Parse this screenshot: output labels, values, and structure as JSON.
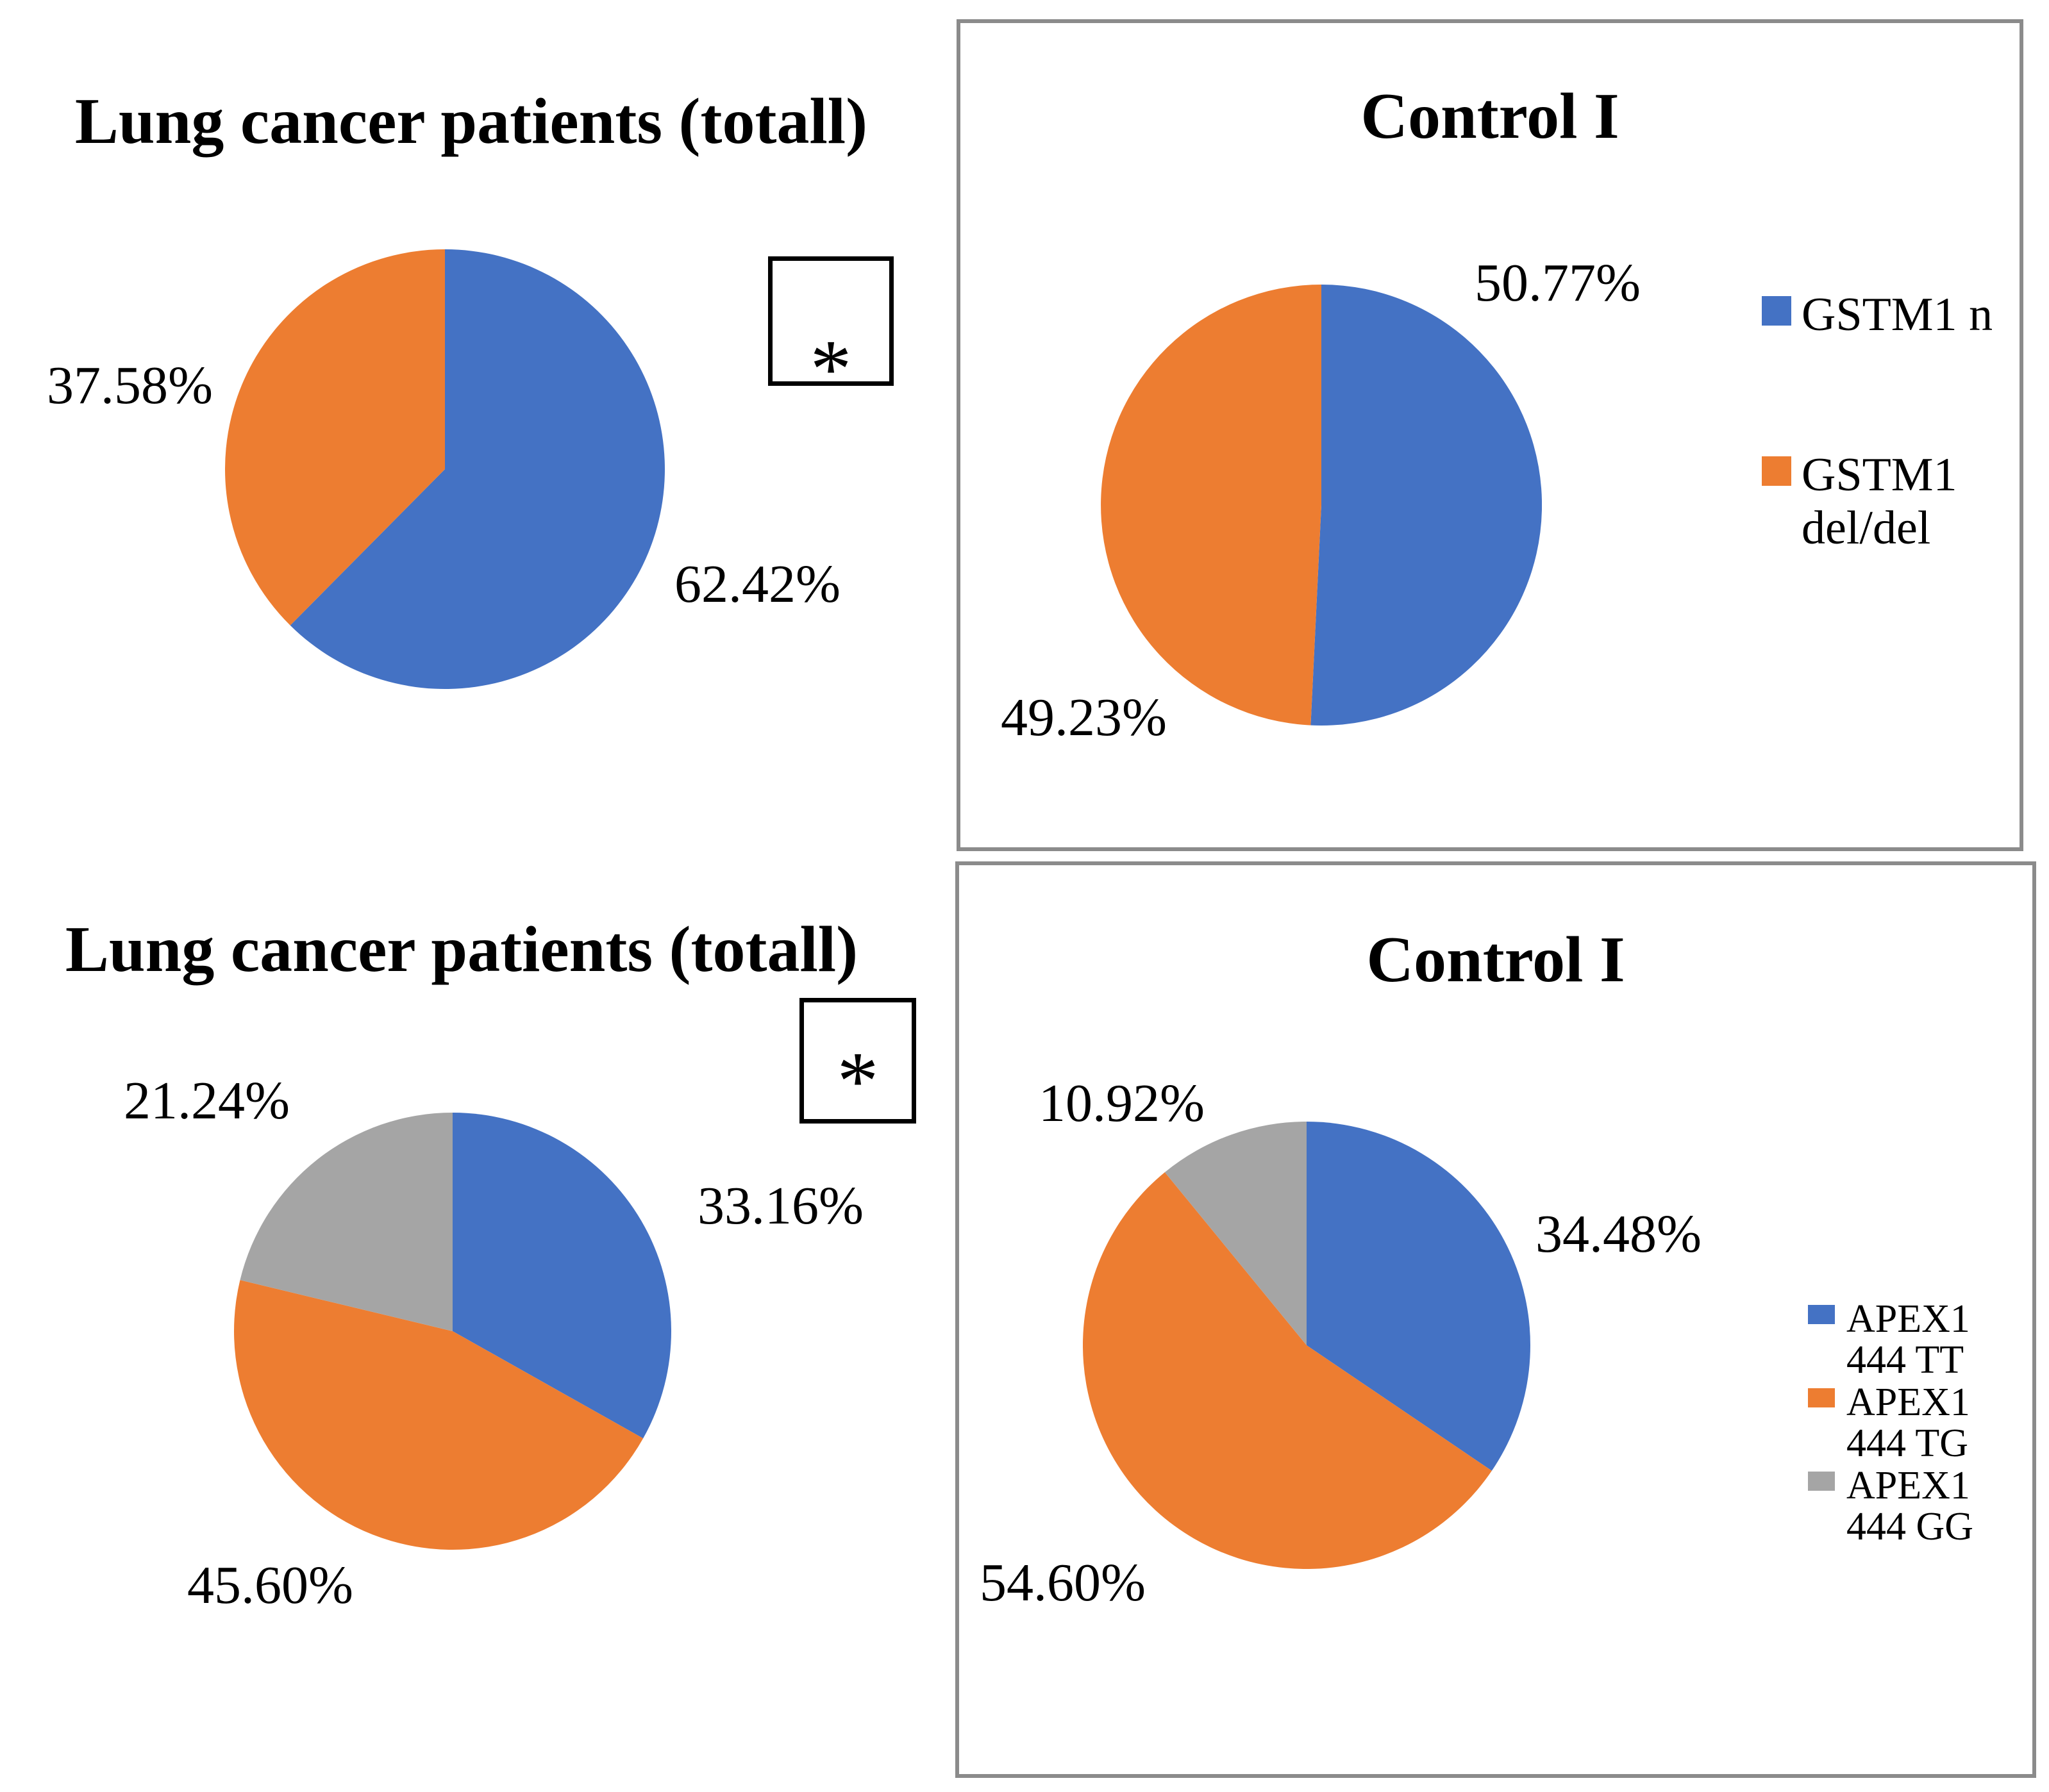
{
  "annotations": {
    "significance_marker": "*"
  },
  "styles": {
    "background": "#FFFFFF",
    "text_color": "#000000",
    "panel_border": "#8B8B8B",
    "blue": "#4472C4",
    "orange": "#ED7D31",
    "gray": "#A5A5A5"
  },
  "chart_data": [
    {
      "type": "pie",
      "title": "Lung cancer patients (totall)",
      "categories": [
        "GSTM1 n",
        "GSTM1 del/del"
      ],
      "values": [
        62.42,
        37.58
      ],
      "labels": [
        "62.42%",
        "37.58%"
      ],
      "colors": [
        "#4472C4",
        "#ED7D31"
      ],
      "annotation": "*",
      "legend_position": "none",
      "boxed": false
    },
    {
      "type": "pie",
      "title": "Control I",
      "categories": [
        "GSTM1 n",
        "GSTM1 del/del"
      ],
      "values": [
        50.77,
        49.23
      ],
      "labels": [
        "50.77%",
        "49.23%"
      ],
      "colors": [
        "#4472C4",
        "#ED7D31"
      ],
      "legend_position": "right",
      "boxed": true
    },
    {
      "type": "pie",
      "title": "Lung cancer patients (totall)",
      "categories": [
        "APEX1 444 TT",
        "APEX1 444 TG",
        "APEX1 444 GG"
      ],
      "values": [
        33.16,
        45.6,
        21.24
      ],
      "labels": [
        "33.16%",
        "45.60%",
        "21.24%"
      ],
      "colors": [
        "#4472C4",
        "#ED7D31",
        "#A5A5A5"
      ],
      "annotation": "*",
      "legend_position": "none",
      "boxed": false
    },
    {
      "type": "pie",
      "title": "Control I",
      "categories": [
        "APEX1 444 TT",
        "APEX1 444 TG",
        "APEX1 444 GG"
      ],
      "values": [
        34.48,
        54.6,
        10.92
      ],
      "labels": [
        "34.48%",
        "54.60%",
        "10.92%"
      ],
      "colors": [
        "#4472C4",
        "#ED7D31",
        "#A5A5A5"
      ],
      "legend_position": "right",
      "boxed": true
    }
  ],
  "legends": {
    "gstm1": {
      "items": [
        {
          "line1": "GSTM1 n",
          "line2": "",
          "color": "#4472C4"
        },
        {
          "line1": "GSTM1",
          "line2": "del/del",
          "color": "#ED7D31"
        }
      ]
    },
    "apex1": {
      "items": [
        {
          "line1": "APEX1",
          "line2": "444 TT",
          "color": "#4472C4"
        },
        {
          "line1": "APEX1",
          "line2": "444 TG",
          "color": "#ED7D31"
        },
        {
          "line1": "APEX1",
          "line2": "444 GG",
          "color": "#A5A5A5"
        }
      ]
    }
  }
}
